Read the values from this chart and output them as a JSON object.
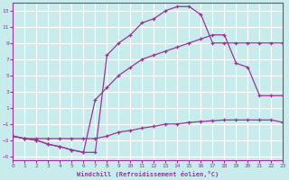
{
  "xlabel": "Windchill (Refroidissement éolien,°C)",
  "background_color": "#c8ecec",
  "grid_color": "#ffffff",
  "line_color": "#993399",
  "xlim": [
    0,
    23
  ],
  "ylim": [
    -5.5,
    14.0
  ],
  "xticks": [
    0,
    1,
    2,
    3,
    4,
    5,
    6,
    7,
    8,
    9,
    10,
    11,
    12,
    13,
    14,
    15,
    16,
    17,
    18,
    19,
    20,
    21,
    22,
    23
  ],
  "yticks": [
    -5,
    -3,
    -1,
    1,
    3,
    5,
    7,
    9,
    11,
    13
  ],
  "curve1_x": [
    0,
    1,
    2,
    3,
    4,
    5,
    6,
    7,
    8,
    9,
    10,
    11,
    12,
    13,
    14,
    15,
    16,
    17,
    18,
    19,
    20,
    21,
    22,
    23
  ],
  "curve1_y": [
    -2.5,
    -2.8,
    -3.0,
    -3.5,
    -3.8,
    -4.2,
    -4.5,
    -4.5,
    7.5,
    9.0,
    10.0,
    11.5,
    12.0,
    13.0,
    13.5,
    13.5,
    12.5,
    9.0,
    9.0,
    9.0,
    9.0,
    9.0,
    9.0,
    9.0
  ],
  "curve2_x": [
    0,
    1,
    2,
    3,
    4,
    5,
    6,
    7,
    8,
    9,
    10,
    11,
    12,
    13,
    14,
    15,
    16,
    17,
    18,
    19,
    20,
    21,
    22,
    23
  ],
  "curve2_y": [
    -2.5,
    -2.8,
    -3.0,
    -3.5,
    -3.8,
    -4.2,
    -4.5,
    2.0,
    3.5,
    5.0,
    6.0,
    7.0,
    7.5,
    8.0,
    8.5,
    9.0,
    9.5,
    10.0,
    10.0,
    6.5,
    6.0,
    2.5,
    2.5,
    2.5
  ],
  "curve3_x": [
    0,
    1,
    2,
    3,
    4,
    5,
    6,
    7,
    8,
    9,
    10,
    11,
    12,
    13,
    14,
    15,
    16,
    17,
    18,
    19,
    20,
    21,
    22,
    23
  ],
  "curve3_y": [
    -2.5,
    -2.8,
    -2.8,
    -2.8,
    -2.8,
    -2.8,
    -2.8,
    -2.8,
    -2.5,
    -2.0,
    -1.8,
    -1.5,
    -1.3,
    -1.0,
    -1.0,
    -0.8,
    -0.7,
    -0.6,
    -0.5,
    -0.5,
    -0.5,
    -0.5,
    -0.5,
    -0.8
  ]
}
